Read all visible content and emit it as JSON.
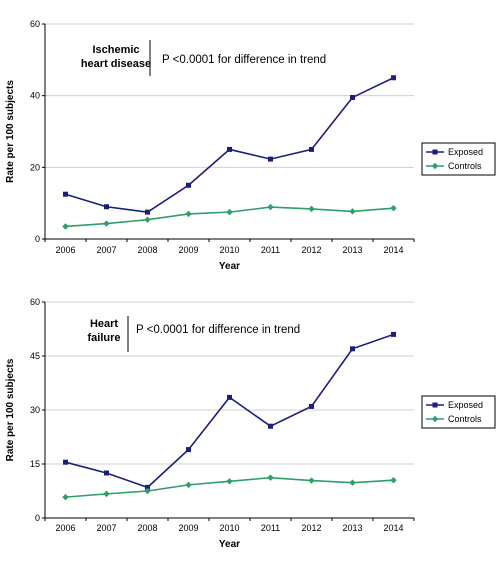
{
  "chart_data": [
    {
      "type": "line",
      "title": "",
      "xlabel": "Year",
      "ylabel": "Rate per 100 subjects",
      "categories": [
        "2006",
        "2007",
        "2008",
        "2009",
        "2010",
        "2011",
        "2012",
        "2013",
        "2014"
      ],
      "ylim": [
        0,
        60
      ],
      "yticks": [
        0,
        20,
        40,
        60
      ],
      "grid": true,
      "legend": "right",
      "annotation": {
        "title_lines": [
          "Ischemic",
          "heart disease"
        ],
        "text": "P <0.0001 for difference in trend"
      },
      "series": [
        {
          "name": "Exposed",
          "color": "#1a1f7a",
          "marker": "square",
          "values": [
            12.5,
            9.0,
            7.5,
            15.0,
            25.0,
            22.3,
            25.0,
            39.5,
            45.0
          ]
        },
        {
          "name": "Controls",
          "color": "#2e9e6a",
          "marker": "diamond",
          "values": [
            3.5,
            4.3,
            5.4,
            7.0,
            7.5,
            8.9,
            8.4,
            7.7,
            8.6
          ]
        }
      ]
    },
    {
      "type": "line",
      "title": "",
      "xlabel": "Year",
      "ylabel": "Rate per 100 subjects",
      "categories": [
        "2006",
        "2007",
        "2008",
        "2009",
        "2010",
        "2011",
        "2012",
        "2013",
        "2014"
      ],
      "ylim": [
        0,
        60
      ],
      "yticks": [
        0,
        15,
        30,
        45,
        60
      ],
      "grid": true,
      "legend": "right",
      "annotation": {
        "title_lines": [
          "Heart",
          "failure"
        ],
        "text": "P <0.0001 for difference in trend"
      },
      "series": [
        {
          "name": "Exposed",
          "color": "#1a1f7a",
          "marker": "square",
          "values": [
            15.5,
            12.5,
            8.5,
            19.0,
            33.5,
            25.5,
            31.0,
            47.0,
            51.0
          ]
        },
        {
          "name": "Controls",
          "color": "#2e9e6a",
          "marker": "diamond",
          "values": [
            5.8,
            6.7,
            7.5,
            9.2,
            10.2,
            11.2,
            10.4,
            9.8,
            10.5
          ]
        }
      ]
    }
  ]
}
